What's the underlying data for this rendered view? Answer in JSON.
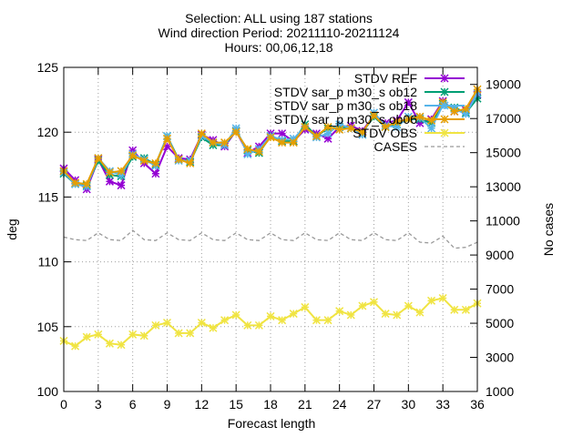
{
  "chart_data": {
    "type": "line",
    "title_lines": [
      "Selection: ALL using   187 stations",
      "Wind direction   Period: 20211110-20211124",
      "Hours: 00,06,12,18"
    ],
    "xlabel": "Forecast length",
    "ylabel": "deg",
    "y2label": "No cases",
    "xlim": [
      0,
      36
    ],
    "ylim": [
      100,
      125
    ],
    "y2lim": [
      1000,
      20000
    ],
    "x_ticks": [
      "0",
      "3",
      "6",
      "9",
      "12",
      "15",
      "18",
      "21",
      "24",
      "27",
      "30",
      "33",
      "36"
    ],
    "y_ticks": [
      "100",
      "105",
      "110",
      "115",
      "120",
      "125"
    ],
    "y2_ticks": [
      "1000",
      "3000",
      "5000",
      "7000",
      "9000",
      "11000",
      "13000",
      "15000",
      "17000",
      "19000"
    ],
    "grid": true,
    "legend_position": "top-right",
    "x": [
      0,
      1,
      2,
      3,
      4,
      5,
      6,
      7,
      8,
      9,
      10,
      11,
      12,
      13,
      14,
      15,
      16,
      17,
      18,
      19,
      20,
      21,
      22,
      23,
      24,
      25,
      26,
      27,
      28,
      29,
      30,
      31,
      32,
      33,
      34,
      35,
      36
    ],
    "series": [
      {
        "name": "STDV REF",
        "color": "#9400d3",
        "marker": "x",
        "axis": "y",
        "values": [
          117.2,
          116.3,
          115.6,
          117.9,
          116.2,
          115.9,
          118.6,
          117.6,
          116.8,
          118.9,
          118.0,
          117.9,
          119.8,
          119.4,
          118.9,
          120.1,
          118.4,
          118.9,
          119.9,
          119.9,
          119.3,
          120.2,
          119.9,
          119.5,
          120.4,
          120.5,
          120.1,
          121.3,
          120.7,
          120.9,
          122.3,
          120.7,
          121.0,
          122.4,
          121.6,
          121.7,
          122.9
        ]
      },
      {
        "name": "STDV sar_p m30_s ob12",
        "color": "#009e73",
        "marker": "x",
        "axis": "y",
        "values": [
          116.8,
          116.0,
          115.9,
          117.8,
          116.7,
          116.6,
          118.1,
          118.0,
          117.5,
          119.7,
          117.9,
          117.7,
          119.6,
          119.0,
          119.0,
          120.1,
          118.6,
          118.4,
          119.7,
          119.3,
          119.3,
          120.6,
          119.7,
          120.3,
          120.4,
          120.3,
          120.0,
          121.2,
          120.4,
          120.6,
          121.0,
          121.0,
          120.7,
          122.2,
          121.9,
          121.5,
          122.6
        ]
      },
      {
        "name": "STDV sar_p m30_s ob18",
        "color": "#56b4e9",
        "marker": "x",
        "axis": "y",
        "values": [
          116.9,
          116.0,
          115.8,
          118.0,
          117.0,
          116.7,
          118.3,
          117.9,
          117.4,
          119.7,
          117.8,
          117.8,
          119.7,
          119.2,
          119.0,
          120.3,
          118.3,
          118.7,
          119.7,
          119.4,
          119.5,
          120.4,
          119.6,
          119.9,
          120.6,
          120.3,
          119.8,
          121.5,
          120.5,
          120.4,
          121.2,
          121.1,
          120.3,
          122.1,
          121.8,
          121.4,
          123.0
        ]
      },
      {
        "name": "STDV sar_p m30_s ob06",
        "color": "#e69f00",
        "marker": "x",
        "axis": "y",
        "values": [
          117.0,
          116.1,
          116.0,
          118.0,
          116.9,
          117.0,
          118.2,
          117.8,
          117.6,
          119.5,
          117.9,
          117.6,
          119.9,
          119.2,
          119.2,
          120.0,
          118.7,
          118.5,
          119.6,
          119.2,
          119.2,
          120.4,
          119.7,
          120.4,
          120.2,
          120.3,
          120.0,
          121.3,
          120.4,
          120.8,
          121.0,
          121.2,
          120.9,
          122.3,
          121.6,
          121.8,
          123.3
        ]
      },
      {
        "name": "STDV OBS",
        "color": "#f0e442",
        "marker": "x",
        "axis": "y",
        "values": [
          103.9,
          103.5,
          104.2,
          104.4,
          103.7,
          103.6,
          104.4,
          104.3,
          105.1,
          105.3,
          104.5,
          104.5,
          105.3,
          104.9,
          105.5,
          105.9,
          105.1,
          105.1,
          105.8,
          105.5,
          106.0,
          106.5,
          105.5,
          105.5,
          106.2,
          105.9,
          106.6,
          106.9,
          106.0,
          105.9,
          106.6,
          106.1,
          107.0,
          107.2,
          106.3,
          106.3,
          106.8
        ]
      },
      {
        "name": "CASES",
        "color": "#999999",
        "dash": true,
        "axis": "y2",
        "values": [
          10050,
          9900,
          9850,
          10300,
          9900,
          9850,
          10450,
          9900,
          9850,
          10300,
          9900,
          9850,
          10300,
          9900,
          9850,
          10300,
          9900,
          9850,
          10300,
          9900,
          9850,
          10300,
          9900,
          9850,
          10300,
          9900,
          9850,
          10300,
          9900,
          9850,
          10300,
          9750,
          9700,
          10100,
          9400,
          9450,
          9750
        ]
      }
    ]
  }
}
